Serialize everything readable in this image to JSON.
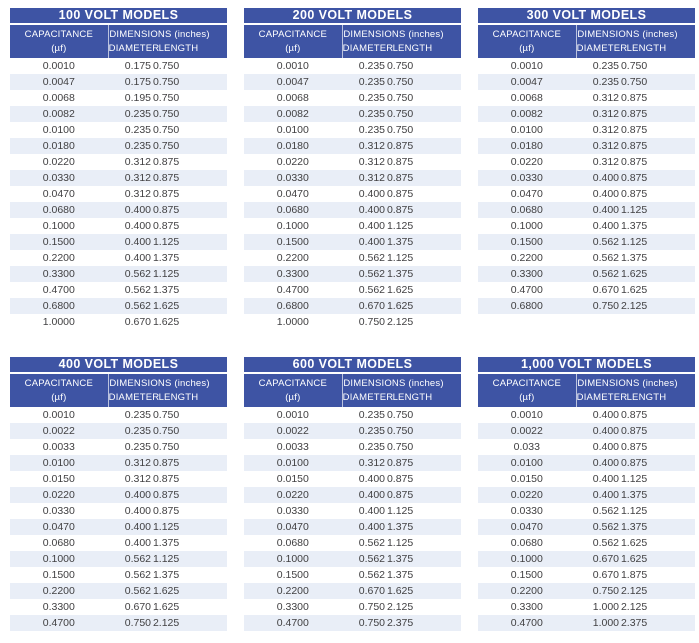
{
  "style": {
    "header_blue": "#3e54a4",
    "alt_row_blue": "#e9eef7",
    "body_text": "#414042",
    "header_text": "#ffffff"
  },
  "columns": {
    "capacitance_label": "CAPACITANCE",
    "capacitance_unit": "(µf)",
    "dimensions_label": "DIMENSIONS (inches)",
    "diameter_label": "DIAMETER",
    "length_label": "LENGTH"
  },
  "tables": [
    {
      "title": "100 VOLT MODELS",
      "rows": [
        [
          "0.0010",
          "0.175",
          "0.750"
        ],
        [
          "0.0047",
          "0.175",
          "0.750"
        ],
        [
          "0.0068",
          "0.195",
          "0.750"
        ],
        [
          "0.0082",
          "0.235",
          "0.750"
        ],
        [
          "0.0100",
          "0.235",
          "0.750"
        ],
        [
          "0.0180",
          "0.235",
          "0.750"
        ],
        [
          "0.0220",
          "0.312",
          "0.875"
        ],
        [
          "0.0330",
          "0.312",
          "0.875"
        ],
        [
          "0.0470",
          "0.312",
          "0.875"
        ],
        [
          "0.0680",
          "0.400",
          "0.875"
        ],
        [
          "0.1000",
          "0.400",
          "0.875"
        ],
        [
          "0.1500",
          "0.400",
          "1.125"
        ],
        [
          "0.2200",
          "0.400",
          "1.375"
        ],
        [
          "0.3300",
          "0.562",
          "1.125"
        ],
        [
          "0.4700",
          "0.562",
          "1.375"
        ],
        [
          "0.6800",
          "0.562",
          "1.625"
        ],
        [
          "1.0000",
          "0.670",
          "1.625"
        ]
      ]
    },
    {
      "title": "200 VOLT MODELS",
      "rows": [
        [
          "0.0010",
          "0.235",
          "0.750"
        ],
        [
          "0.0047",
          "0.235",
          "0.750"
        ],
        [
          "0.0068",
          "0.235",
          "0.750"
        ],
        [
          "0.0082",
          "0.235",
          "0.750"
        ],
        [
          "0.0100",
          "0.235",
          "0.750"
        ],
        [
          "0.0180",
          "0.312",
          "0.875"
        ],
        [
          "0.0220",
          "0.312",
          "0.875"
        ],
        [
          "0.0330",
          "0.312",
          "0.875"
        ],
        [
          "0.0470",
          "0.400",
          "0.875"
        ],
        [
          "0.0680",
          "0.400",
          "0.875"
        ],
        [
          "0.1000",
          "0.400",
          "1.125"
        ],
        [
          "0.1500",
          "0.400",
          "1.375"
        ],
        [
          "0.2200",
          "0.562",
          "1.125"
        ],
        [
          "0.3300",
          "0.562",
          "1.375"
        ],
        [
          "0.4700",
          "0.562",
          "1.625"
        ],
        [
          "0.6800",
          "0.670",
          "1.625"
        ],
        [
          "1.0000",
          "0.750",
          "2.125"
        ]
      ]
    },
    {
      "title": "300 VOLT MODELS",
      "rows": [
        [
          "0.0010",
          "0.235",
          "0.750"
        ],
        [
          "0.0047",
          "0.235",
          "0.750"
        ],
        [
          "0.0068",
          "0.312",
          "0.875"
        ],
        [
          "0.0082",
          "0.312",
          "0.875"
        ],
        [
          "0.0100",
          "0.312",
          "0.875"
        ],
        [
          "0.0180",
          "0.312",
          "0.875"
        ],
        [
          "0.0220",
          "0.312",
          "0.875"
        ],
        [
          "0.0330",
          "0.400",
          "0.875"
        ],
        [
          "0.0470",
          "0.400",
          "0.875"
        ],
        [
          "0.0680",
          "0.400",
          "1.125"
        ],
        [
          "0.1000",
          "0.400",
          "1.375"
        ],
        [
          "0.1500",
          "0.562",
          "1.125"
        ],
        [
          "0.2200",
          "0.562",
          "1.375"
        ],
        [
          "0.3300",
          "0.562",
          "1.625"
        ],
        [
          "0.4700",
          "0.670",
          "1.625"
        ],
        [
          "0.6800",
          "0.750",
          "2.125"
        ]
      ]
    },
    {
      "title": "400 VOLT MODELS",
      "rows": [
        [
          "0.0010",
          "0.235",
          "0.750"
        ],
        [
          "0.0022",
          "0.235",
          "0.750"
        ],
        [
          "0.0033",
          "0.235",
          "0.750"
        ],
        [
          "0.0100",
          "0.312",
          "0.875"
        ],
        [
          "0.0150",
          "0.312",
          "0.875"
        ],
        [
          "0.0220",
          "0.400",
          "0.875"
        ],
        [
          "0.0330",
          "0.400",
          "0.875"
        ],
        [
          "0.0470",
          "0.400",
          "1.125"
        ],
        [
          "0.0680",
          "0.400",
          "1.375"
        ],
        [
          "0.1000",
          "0.562",
          "1.125"
        ],
        [
          "0.1500",
          "0.562",
          "1.375"
        ],
        [
          "0.2200",
          "0.562",
          "1.625"
        ],
        [
          "0.3300",
          "0.670",
          "1.625"
        ],
        [
          "0.4700",
          "0.750",
          "2.125"
        ]
      ]
    },
    {
      "title": "600 VOLT MODELS",
      "rows": [
        [
          "0.0010",
          "0.235",
          "0.750"
        ],
        [
          "0.0022",
          "0.235",
          "0.750"
        ],
        [
          "0.0033",
          "0.235",
          "0.750"
        ],
        [
          "0.0100",
          "0.312",
          "0.875"
        ],
        [
          "0.0150",
          "0.400",
          "0.875"
        ],
        [
          "0.0220",
          "0.400",
          "0.875"
        ],
        [
          "0.0330",
          "0.400",
          "1.125"
        ],
        [
          "0.0470",
          "0.400",
          "1.375"
        ],
        [
          "0.0680",
          "0.562",
          "1.125"
        ],
        [
          "0.1000",
          "0.562",
          "1.375"
        ],
        [
          "0.1500",
          "0.562",
          "1.375"
        ],
        [
          "0.2200",
          "0.670",
          "1.625"
        ],
        [
          "0.3300",
          "0.750",
          "2.125"
        ],
        [
          "0.4700",
          "0.750",
          "2.375"
        ]
      ]
    },
    {
      "title": "1,000 VOLT MODELS",
      "rows": [
        [
          "0.0010",
          "0.400",
          "0.875"
        ],
        [
          "0.0022",
          "0.400",
          "0.875"
        ],
        [
          "0.033",
          "0.400",
          "0.875"
        ],
        [
          "0.0100",
          "0.400",
          "0.875"
        ],
        [
          "0.0150",
          "0.400",
          "1.125"
        ],
        [
          "0.0220",
          "0.400",
          "1.375"
        ],
        [
          "0.0330",
          "0.562",
          "1.125"
        ],
        [
          "0.0470",
          "0.562",
          "1.375"
        ],
        [
          "0.0680",
          "0.562",
          "1.625"
        ],
        [
          "0.1000",
          "0.670",
          "1.625"
        ],
        [
          "0.1500",
          "0.670",
          "1.875"
        ],
        [
          "0.2200",
          "0.750",
          "2.125"
        ],
        [
          "0.3300",
          "1.000",
          "2.125"
        ],
        [
          "0.4700",
          "1.000",
          "2.375"
        ]
      ]
    }
  ]
}
